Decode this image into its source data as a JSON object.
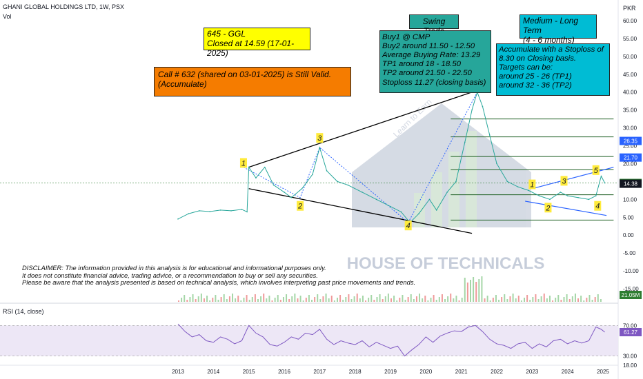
{
  "header": {
    "symbol": "GHANI GLOBAL HOLDINGS LTD, 1W, PSX",
    "volume_label": "Vol",
    "currency": "PKR",
    "rsi_label": "RSI (14, close)"
  },
  "watermark": {
    "brand": "HOUSE OF TECHNICALS",
    "tagline": "Learn to Earn"
  },
  "notes": {
    "closed": "645 - GGL\nClosed at 14.59 (17-01-2025)",
    "call": "Call # 632 (shared on 03-01-2025) is Still Valid.\n(Accumulate)",
    "swing_title": "Swing Trade",
    "swing_body": "Buy1 @ CMP\nBuy2 around 11.50 - 12.50\nAverage Buying Rate: 13.29\nTP1 around 18 - 18.50\nTP2 around 21.50 - 22.50\nStoploss 11.27 (closing basis)",
    "medium_title": "Medium - Long Term\n(4 - 6 months)",
    "medium_body": "Accumulate with a Stoploss of\n8.30 on Closing basis.\nTargets can be:\naround 25 - 26 (TP1)\naround 32 - 36 (TP2)"
  },
  "disclaimer": "DISCLAIMER: The information provided in this analysis is for educational and informational purposes only.\nIt does not constitute financial advice, trading advice, or a recommendation to buy or sell any securities.\nPlease be aware that the analysis presented is based on technical analysis, which involves interpreting past price movements and trends.",
  "colors": {
    "note_yellow": "#ffff00",
    "note_orange": "#f57c00",
    "note_green": "#26a69a",
    "note_cyan": "#00bcd4",
    "price_line": "#26a69a",
    "wave_label": "#ffeb3b",
    "rsi_line": "#7e57c2",
    "badge_green": "#2e7d32",
    "badge_blue": "#2962ff",
    "badge_dark": "#131722"
  },
  "chart_data": [
    {
      "type": "line",
      "title": "GHANI GLOBAL HOLDINGS LTD, 1W, PSX",
      "y_axis_unit": "PKR",
      "ylim": [
        -15,
        60
      ],
      "y_ticks": [
        -15,
        -10,
        -5,
        0,
        5,
        10,
        15,
        20,
        25,
        30,
        35,
        40,
        45,
        50,
        55,
        60
      ],
      "x_ticks": [
        "2013",
        "2014",
        "2015",
        "2016",
        "2017",
        "2018",
        "2019",
        "2020",
        "2021",
        "2022",
        "2023",
        "2024",
        "2025"
      ],
      "series": [
        {
          "values": [
            {
              "x": 2013.0,
              "y": 4.5
            },
            {
              "x": 2013.3,
              "y": 6.0
            },
            {
              "x": 2013.6,
              "y": 6.8
            },
            {
              "x": 2013.9,
              "y": 6.6
            },
            {
              "x": 2014.2,
              "y": 7.0
            },
            {
              "x": 2014.5,
              "y": 6.8
            },
            {
              "x": 2014.8,
              "y": 7.2
            },
            {
              "x": 2014.95,
              "y": 6.5
            },
            {
              "x": 2015.0,
              "y": 19.0
            },
            {
              "x": 2015.2,
              "y": 16.0
            },
            {
              "x": 2015.45,
              "y": 19.0
            },
            {
              "x": 2015.7,
              "y": 14.0
            },
            {
              "x": 2016.0,
              "y": 12.0
            },
            {
              "x": 2016.2,
              "y": 10.5
            },
            {
              "x": 2016.5,
              "y": 13.0
            },
            {
              "x": 2016.8,
              "y": 17.0
            },
            {
              "x": 2017.0,
              "y": 24.5
            },
            {
              "x": 2017.2,
              "y": 18.0
            },
            {
              "x": 2017.5,
              "y": 15.0
            },
            {
              "x": 2017.8,
              "y": 14.0
            },
            {
              "x": 2018.2,
              "y": 12.0
            },
            {
              "x": 2018.6,
              "y": 10.0
            },
            {
              "x": 2019.0,
              "y": 8.0
            },
            {
              "x": 2019.3,
              "y": 6.5
            },
            {
              "x": 2019.55,
              "y": 3.5
            },
            {
              "x": 2019.8,
              "y": 6.0
            },
            {
              "x": 2020.1,
              "y": 10.0
            },
            {
              "x": 2020.3,
              "y": 7.0
            },
            {
              "x": 2020.6,
              "y": 12.0
            },
            {
              "x": 2020.85,
              "y": 15.0
            },
            {
              "x": 2021.1,
              "y": 26.0
            },
            {
              "x": 2021.3,
              "y": 35.0
            },
            {
              "x": 2021.45,
              "y": 40.0
            },
            {
              "x": 2021.6,
              "y": 36.0
            },
            {
              "x": 2021.8,
              "y": 28.0
            },
            {
              "x": 2022.0,
              "y": 20.0
            },
            {
              "x": 2022.3,
              "y": 15.0
            },
            {
              "x": 2022.6,
              "y": 13.5
            },
            {
              "x": 2022.9,
              "y": 12.5
            },
            {
              "x": 2023.2,
              "y": 11.0
            },
            {
              "x": 2023.5,
              "y": 10.0
            },
            {
              "x": 2023.8,
              "y": 12.0
            },
            {
              "x": 2024.0,
              "y": 11.0
            },
            {
              "x": 2024.3,
              "y": 10.5
            },
            {
              "x": 2024.6,
              "y": 10.0
            },
            {
              "x": 2024.8,
              "y": 11.0
            },
            {
              "x": 2024.95,
              "y": 16.5
            },
            {
              "x": 2025.05,
              "y": 14.59
            }
          ]
        }
      ],
      "price_badges": [
        {
          "value": "26.35",
          "color": "#2962ff"
        },
        {
          "value": "21.70",
          "color": "#2962ff"
        },
        {
          "value": "14.59",
          "color": "#2e7d32"
        },
        {
          "value": "14.38",
          "color": "#131722"
        }
      ],
      "horizontal_levels": [
        4.2,
        11.3,
        18.3,
        22.0,
        27.5,
        32.5
      ],
      "wave_labels": [
        {
          "label": "1",
          "x": 2014.85,
          "y": 20.0
        },
        {
          "label": "2",
          "x": 2016.45,
          "y": 8.0
        },
        {
          "label": "3",
          "x": 2017.0,
          "y": 27.0
        },
        {
          "label": "4",
          "x": 2019.5,
          "y": 2.5
        },
        {
          "label": "1",
          "x": 2023.0,
          "y": 14.0
        },
        {
          "label": "2",
          "x": 2023.45,
          "y": 7.5
        },
        {
          "label": "3",
          "x": 2023.9,
          "y": 15.0
        },
        {
          "label": "4",
          "x": 2024.85,
          "y": 8.0
        },
        {
          "label": "5",
          "x": 2024.8,
          "y": 18.0
        }
      ],
      "volume_badge": "21.05M"
    },
    {
      "type": "line",
      "title": "RSI (14, close)",
      "ylim": [
        18,
        82
      ],
      "y_ticks": [
        18.0,
        30.0,
        61.27,
        70.0
      ],
      "y_tick_labels": [
        "18.00",
        "30.00",
        "61.27",
        "70.00"
      ],
      "series": [
        {
          "values": [
            {
              "x": 2013.0,
              "y": 72
            },
            {
              "x": 2013.2,
              "y": 62
            },
            {
              "x": 2013.4,
              "y": 55
            },
            {
              "x": 2013.6,
              "y": 58
            },
            {
              "x": 2013.8,
              "y": 50
            },
            {
              "x": 2014.0,
              "y": 48
            },
            {
              "x": 2014.2,
              "y": 55
            },
            {
              "x": 2014.4,
              "y": 52
            },
            {
              "x": 2014.6,
              "y": 46
            },
            {
              "x": 2014.8,
              "y": 50
            },
            {
              "x": 2015.0,
              "y": 70
            },
            {
              "x": 2015.2,
              "y": 60
            },
            {
              "x": 2015.4,
              "y": 55
            },
            {
              "x": 2015.6,
              "y": 45
            },
            {
              "x": 2015.8,
              "y": 43
            },
            {
              "x": 2016.0,
              "y": 48
            },
            {
              "x": 2016.2,
              "y": 55
            },
            {
              "x": 2016.4,
              "y": 52
            },
            {
              "x": 2016.6,
              "y": 60
            },
            {
              "x": 2016.8,
              "y": 58
            },
            {
              "x": 2017.0,
              "y": 65
            },
            {
              "x": 2017.2,
              "y": 52
            },
            {
              "x": 2017.4,
              "y": 45
            },
            {
              "x": 2017.6,
              "y": 50
            },
            {
              "x": 2017.8,
              "y": 47
            },
            {
              "x": 2018.0,
              "y": 45
            },
            {
              "x": 2018.2,
              "y": 50
            },
            {
              "x": 2018.4,
              "y": 42
            },
            {
              "x": 2018.6,
              "y": 48
            },
            {
              "x": 2018.8,
              "y": 44
            },
            {
              "x": 2019.0,
              "y": 40
            },
            {
              "x": 2019.2,
              "y": 43
            },
            {
              "x": 2019.4,
              "y": 30
            },
            {
              "x": 2019.6,
              "y": 38
            },
            {
              "x": 2019.8,
              "y": 45
            },
            {
              "x": 2020.0,
              "y": 55
            },
            {
              "x": 2020.2,
              "y": 48
            },
            {
              "x": 2020.4,
              "y": 56
            },
            {
              "x": 2020.6,
              "y": 60
            },
            {
              "x": 2020.8,
              "y": 63
            },
            {
              "x": 2021.0,
              "y": 62
            },
            {
              "x": 2021.2,
              "y": 68
            },
            {
              "x": 2021.4,
              "y": 70
            },
            {
              "x": 2021.6,
              "y": 62
            },
            {
              "x": 2021.8,
              "y": 52
            },
            {
              "x": 2022.0,
              "y": 46
            },
            {
              "x": 2022.2,
              "y": 44
            },
            {
              "x": 2022.4,
              "y": 40
            },
            {
              "x": 2022.6,
              "y": 46
            },
            {
              "x": 2022.8,
              "y": 48
            },
            {
              "x": 2023.0,
              "y": 40
            },
            {
              "x": 2023.2,
              "y": 46
            },
            {
              "x": 2023.4,
              "y": 42
            },
            {
              "x": 2023.6,
              "y": 50
            },
            {
              "x": 2023.8,
              "y": 52
            },
            {
              "x": 2024.0,
              "y": 46
            },
            {
              "x": 2024.2,
              "y": 50
            },
            {
              "x": 2024.4,
              "y": 47
            },
            {
              "x": 2024.6,
              "y": 50
            },
            {
              "x": 2024.8,
              "y": 68
            },
            {
              "x": 2024.95,
              "y": 65
            },
            {
              "x": 2025.05,
              "y": 61.27
            }
          ]
        }
      ]
    }
  ]
}
